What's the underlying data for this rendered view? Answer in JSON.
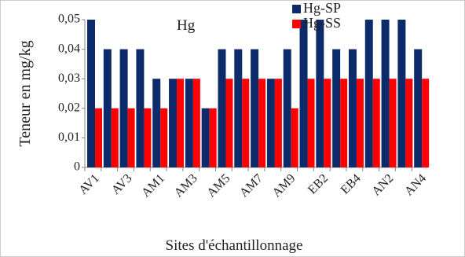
{
  "chart_data": {
    "type": "bar",
    "y_label": "Teneur  en mg/kg",
    "x_label": "Sites d'échantillonnage",
    "annotation": "Hg",
    "categories": [
      "AV1",
      null,
      "AV3",
      null,
      "AM1",
      null,
      "AM3",
      null,
      "AM5",
      null,
      "AM7",
      null,
      "AM9",
      null,
      "EB2",
      null,
      "EB4",
      null,
      "AN2",
      null,
      "AN4"
    ],
    "series": [
      {
        "name": "Hg-SP",
        "color": "#0d2a6b",
        "values": [
          0.05,
          0.04,
          0.04,
          0.04,
          0.03,
          0.03,
          0.03,
          0.02,
          0.04,
          0.04,
          0.04,
          0.03,
          0.04,
          0.05,
          0.05,
          0.04,
          0.04,
          0.05,
          0.05,
          0.05,
          0.04
        ]
      },
      {
        "name": "Hg-SS",
        "color": "#ff0000",
        "values": [
          0.02,
          0.02,
          0.02,
          0.02,
          0.02,
          0.03,
          0.03,
          0.02,
          0.03,
          0.03,
          0.03,
          0.03,
          0.02,
          0.03,
          0.03,
          0.03,
          0.03,
          0.03,
          0.03,
          0.03,
          0.03
        ]
      }
    ],
    "ylim": [
      0,
      0.05
    ],
    "yticks": [
      0,
      {
        "value": 0.01,
        "label": "0,01"
      },
      {
        "value": 0.02,
        "label": "0,02"
      },
      {
        "value": 0.03,
        "label": "0,03"
      },
      {
        "value": 0.04,
        "label": "0,04"
      },
      {
        "value": 0.05,
        "label": "0,05"
      }
    ]
  }
}
